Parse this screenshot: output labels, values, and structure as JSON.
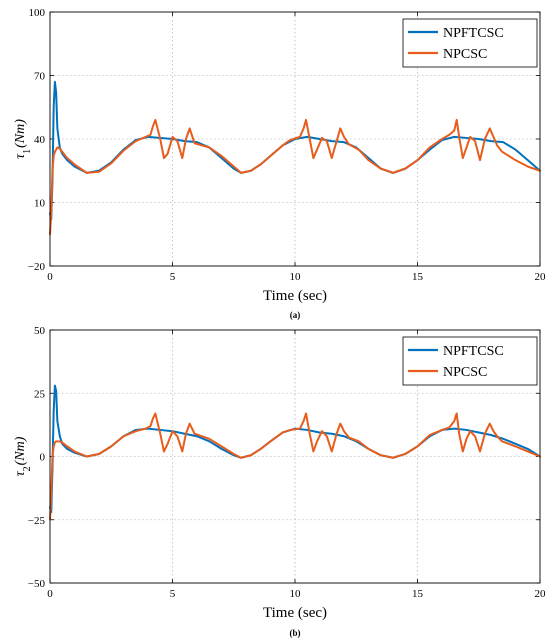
{
  "colors": {
    "NPFTCSC": "#0072BD",
    "NPCSC": "#E85C1C",
    "grid": "#bbbbbb"
  },
  "chart_data": [
    {
      "type": "line",
      "sublabel": "(a)",
      "ylabel_symbol": "τ",
      "ylabel_sub": "1",
      "ylabel_unit": "(Nm)",
      "xlabel": "Time (sec)",
      "xlim": [
        0,
        20
      ],
      "ylim": [
        -20,
        100
      ],
      "xticks": [
        "0",
        "5",
        "10",
        "15",
        "20"
      ],
      "yticks": [
        "100",
        "70",
        "40",
        "10",
        "−20"
      ],
      "ytick_values": [
        100,
        70,
        40,
        10,
        -20
      ],
      "grid": true,
      "legend_position": "top-right",
      "series": [
        {
          "name": "NPFTCSC",
          "color_key": "NPFTCSC",
          "x": [
            0,
            0.05,
            0.1,
            0.15,
            0.2,
            0.25,
            0.3,
            0.4,
            0.5,
            0.7,
            1.0,
            1.5,
            2.0,
            2.5,
            3.0,
            3.5,
            4.0,
            4.5,
            5.0,
            5.5,
            6.0,
            6.5,
            7.0,
            7.5,
            7.8,
            8.2,
            8.6,
            9.0,
            9.5,
            10.0,
            10.5,
            11.0,
            11.5,
            12.0,
            12.5,
            13.0,
            13.5,
            14.0,
            14.5,
            15.0,
            15.5,
            16.0,
            16.5,
            17.0,
            17.5,
            18.0,
            18.5,
            19.0,
            19.5,
            20.0
          ],
          "y": [
            5,
            2,
            20,
            55,
            67,
            62,
            45,
            36,
            33,
            30,
            27,
            24,
            25,
            29,
            35,
            39.5,
            41,
            40.5,
            40,
            39,
            38.5,
            36,
            31,
            26,
            24,
            25,
            28,
            32,
            37,
            40,
            41,
            40,
            39,
            38.5,
            36,
            31,
            26,
            24,
            26,
            30,
            35,
            39.5,
            41,
            40.5,
            40,
            39,
            38.5,
            35,
            30,
            25
          ]
        },
        {
          "name": "NPCSC",
          "color_key": "NPCSC",
          "x": [
            0,
            0.05,
            0.1,
            0.15,
            0.2,
            0.25,
            0.3,
            0.4,
            0.5,
            0.7,
            1.0,
            1.5,
            2.0,
            2.5,
            3.0,
            3.5,
            3.9,
            4.1,
            4.2,
            4.3,
            4.5,
            4.65,
            4.8,
            5.0,
            5.2,
            5.4,
            5.55,
            5.7,
            5.9,
            6.5,
            7.0,
            7.5,
            7.8,
            8.2,
            8.6,
            9.0,
            9.5,
            9.8,
            10.2,
            10.35,
            10.45,
            10.6,
            10.75,
            10.9,
            11.1,
            11.3,
            11.5,
            11.7,
            11.85,
            12.0,
            12.2,
            12.6,
            13.0,
            13.5,
            14.0,
            14.5,
            15.0,
            15.5,
            16.0,
            16.3,
            16.5,
            16.6,
            16.7,
            16.85,
            17.0,
            17.15,
            17.35,
            17.55,
            17.75,
            17.95,
            18.1,
            18.25,
            18.45,
            19.0,
            19.5,
            20.0
          ],
          "y": [
            -5,
            5,
            25,
            32,
            34,
            35,
            36,
            35.5,
            34,
            31,
            28,
            24,
            24.5,
            28.5,
            34.5,
            39,
            41,
            42,
            46,
            49,
            40,
            31,
            33,
            41,
            39,
            31,
            40,
            45,
            38,
            36,
            32,
            27,
            24,
            25,
            28,
            32,
            37,
            39.5,
            41,
            45,
            49,
            40,
            31,
            35,
            40.5,
            39,
            31,
            39,
            45,
            41,
            37.5,
            35,
            30,
            26,
            24,
            26,
            30,
            36,
            40,
            42,
            44,
            49,
            41,
            31,
            36,
            41,
            39,
            30,
            40,
            45,
            41,
            37,
            34,
            30,
            27,
            25
          ]
        }
      ]
    },
    {
      "type": "line",
      "sublabel": "(b)",
      "ylabel_symbol": "τ",
      "ylabel_sub": "2",
      "ylabel_unit": "(Nm)",
      "xlabel": "Time (sec)",
      "xlim": [
        0,
        20
      ],
      "ylim": [
        -50,
        50
      ],
      "xticks": [
        "0",
        "5",
        "10",
        "15",
        "20"
      ],
      "yticks": [
        "50",
        "25",
        "0",
        "−25",
        "−50"
      ],
      "ytick_values": [
        50,
        25,
        0,
        -25,
        -50
      ],
      "grid": true,
      "legend_position": "top-right",
      "series": [
        {
          "name": "NPFTCSC",
          "color_key": "NPFTCSC",
          "x": [
            0,
            0.05,
            0.1,
            0.15,
            0.2,
            0.25,
            0.3,
            0.4,
            0.5,
            0.7,
            1.0,
            1.5,
            2.0,
            2.5,
            3.0,
            3.5,
            4.0,
            4.5,
            5.0,
            5.5,
            6.0,
            6.5,
            7.0,
            7.5,
            7.8,
            8.2,
            8.6,
            9.0,
            9.5,
            10.0,
            10.5,
            11.0,
            11.5,
            12.0,
            12.5,
            13.0,
            13.5,
            14.0,
            14.5,
            15.0,
            15.5,
            16.0,
            16.5,
            17.0,
            17.5,
            18.0,
            18.5,
            19.0,
            19.5,
            20.0
          ],
          "y": [
            -20,
            -22,
            -5,
            18,
            28,
            26,
            14,
            8,
            5,
            3,
            1.5,
            0,
            1,
            4,
            8,
            10.5,
            11,
            10.5,
            10,
            9,
            8,
            6,
            3,
            0.5,
            -0.5,
            0.5,
            3,
            6,
            9.5,
            11,
            10.5,
            9.5,
            9,
            8,
            6,
            3,
            0.5,
            -0.5,
            1,
            4,
            8,
            10.5,
            11,
            10.5,
            9.5,
            8.5,
            7,
            5,
            3,
            0
          ]
        },
        {
          "name": "NPCSC",
          "color_key": "NPCSC",
          "x": [
            0,
            0.05,
            0.1,
            0.15,
            0.2,
            0.25,
            0.3,
            0.4,
            0.5,
            0.7,
            1.0,
            1.5,
            2.0,
            2.5,
            3.0,
            3.5,
            3.9,
            4.1,
            4.2,
            4.3,
            4.5,
            4.65,
            4.8,
            5.0,
            5.2,
            5.4,
            5.55,
            5.7,
            5.9,
            6.5,
            7.0,
            7.5,
            7.8,
            8.2,
            8.6,
            9.0,
            9.5,
            9.8,
            10.2,
            10.35,
            10.45,
            10.6,
            10.75,
            10.9,
            11.1,
            11.3,
            11.5,
            11.7,
            11.85,
            12.0,
            12.2,
            12.6,
            13.0,
            13.5,
            14.0,
            14.5,
            15.0,
            15.5,
            16.0,
            16.3,
            16.5,
            16.6,
            16.7,
            16.85,
            17.0,
            17.15,
            17.35,
            17.55,
            17.75,
            17.95,
            18.1,
            18.25,
            18.45,
            19.0,
            19.5,
            20.0
          ],
          "y": [
            -25,
            -15,
            0,
            4,
            5.5,
            6,
            6,
            6,
            5.5,
            4,
            2,
            0,
            1,
            4,
            8,
            10,
            11,
            12,
            15,
            17,
            9,
            2,
            5,
            10,
            8,
            2,
            9,
            13,
            9,
            7,
            4,
            1,
            -0.5,
            0.5,
            3,
            6,
            9.5,
            10.5,
            11,
            14,
            17,
            9,
            2,
            6,
            10,
            8,
            2,
            9,
            13,
            10,
            7.5,
            6,
            3,
            0.5,
            -0.5,
            1,
            4,
            8.5,
            10.5,
            11.5,
            14,
            17,
            9,
            2,
            7,
            10,
            8,
            2,
            9,
            13,
            10,
            8,
            6,
            4,
            2,
            0
          ]
        }
      ]
    }
  ]
}
